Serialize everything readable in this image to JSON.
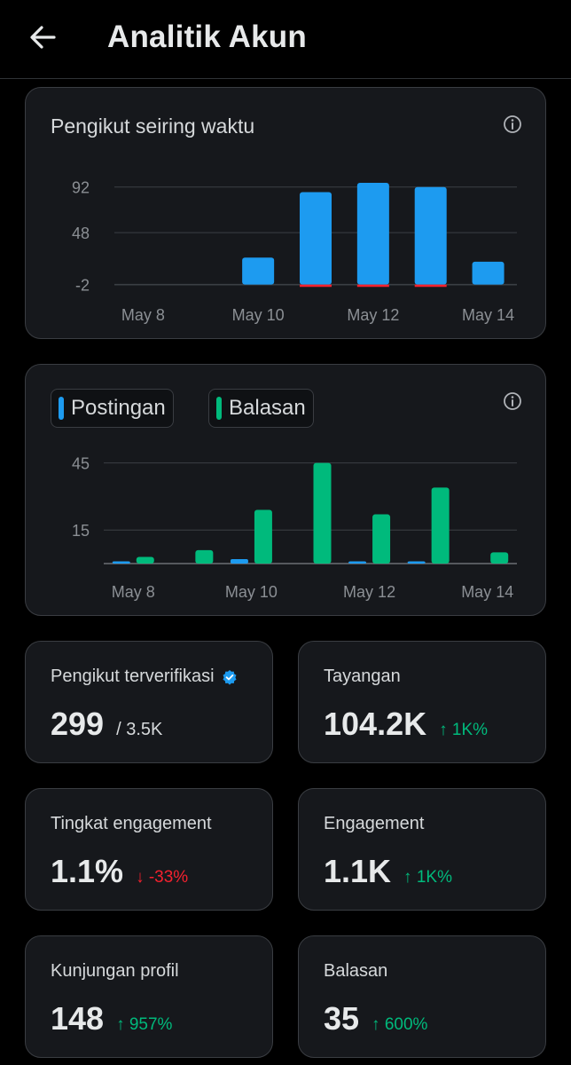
{
  "header": {
    "title": "Analitik Akun",
    "back_icon": "arrow-left-icon"
  },
  "colors": {
    "blue": "#1d9bf0",
    "green": "#00ba7c",
    "red": "#f4212e",
    "card_bg": "#16181c",
    "border": "#3a3d42"
  },
  "followers_card": {
    "title": "Pengikut seiring waktu",
    "info_icon": "info-icon",
    "chart_data": {
      "type": "bar",
      "categories": [
        "May 8",
        "May 9",
        "May 10",
        "May 11",
        "May 12",
        "May 13",
        "May 14"
      ],
      "series": [
        {
          "values": [
            0,
            0,
            24,
            87,
            96,
            92,
            20
          ]
        },
        {
          "values": [
            0,
            0,
            0,
            -2,
            -1,
            -1,
            0
          ]
        }
      ],
      "x_tick_labels": [
        "May 8",
        "May 10",
        "May 12",
        "May 14"
      ],
      "y_ticks": [
        "92",
        "48",
        "-2"
      ],
      "ylim": [
        -4,
        102
      ]
    }
  },
  "posts_card": {
    "legend": [
      "Postingan",
      "Balasan"
    ],
    "info_icon": "info-icon",
    "chart_data": {
      "type": "bar",
      "categories": [
        "May 8",
        "May 9",
        "May 10",
        "May 11",
        "May 12",
        "May 13",
        "May 14"
      ],
      "series": [
        {
          "name": "Postingan",
          "values": [
            1,
            0,
            2,
            0,
            1,
            1,
            0
          ]
        },
        {
          "name": "Balasan",
          "values": [
            3,
            6,
            24,
            45,
            22,
            34,
            5
          ]
        }
      ],
      "x_tick_labels": [
        "May 8",
        "May 10",
        "May 12",
        "May 14"
      ],
      "y_ticks": [
        "45",
        "15"
      ],
      "ylim": [
        0,
        50
      ]
    }
  },
  "stats": [
    {
      "label": "Pengikut terverifikasi",
      "value": "299",
      "sub": "/ 3.5K",
      "change": "",
      "direction": "none",
      "verified": true
    },
    {
      "label": "Tayangan",
      "value": "104.2K",
      "sub": "",
      "change": "↑ 1K%",
      "direction": "up",
      "verified": false
    },
    {
      "label": "Tingkat engagement",
      "value": "1.1%",
      "sub": "",
      "change": "↓ -33%",
      "direction": "down",
      "verified": false
    },
    {
      "label": "Engagement",
      "value": "1.1K",
      "sub": "",
      "change": "↑ 1K%",
      "direction": "up",
      "verified": false
    },
    {
      "label": "Kunjungan profil",
      "value": "148",
      "sub": "",
      "change": "↑ 957%",
      "direction": "up",
      "verified": false
    },
    {
      "label": "Balasan",
      "value": "35",
      "sub": "",
      "change": "↑ 600%",
      "direction": "up",
      "verified": false
    }
  ]
}
